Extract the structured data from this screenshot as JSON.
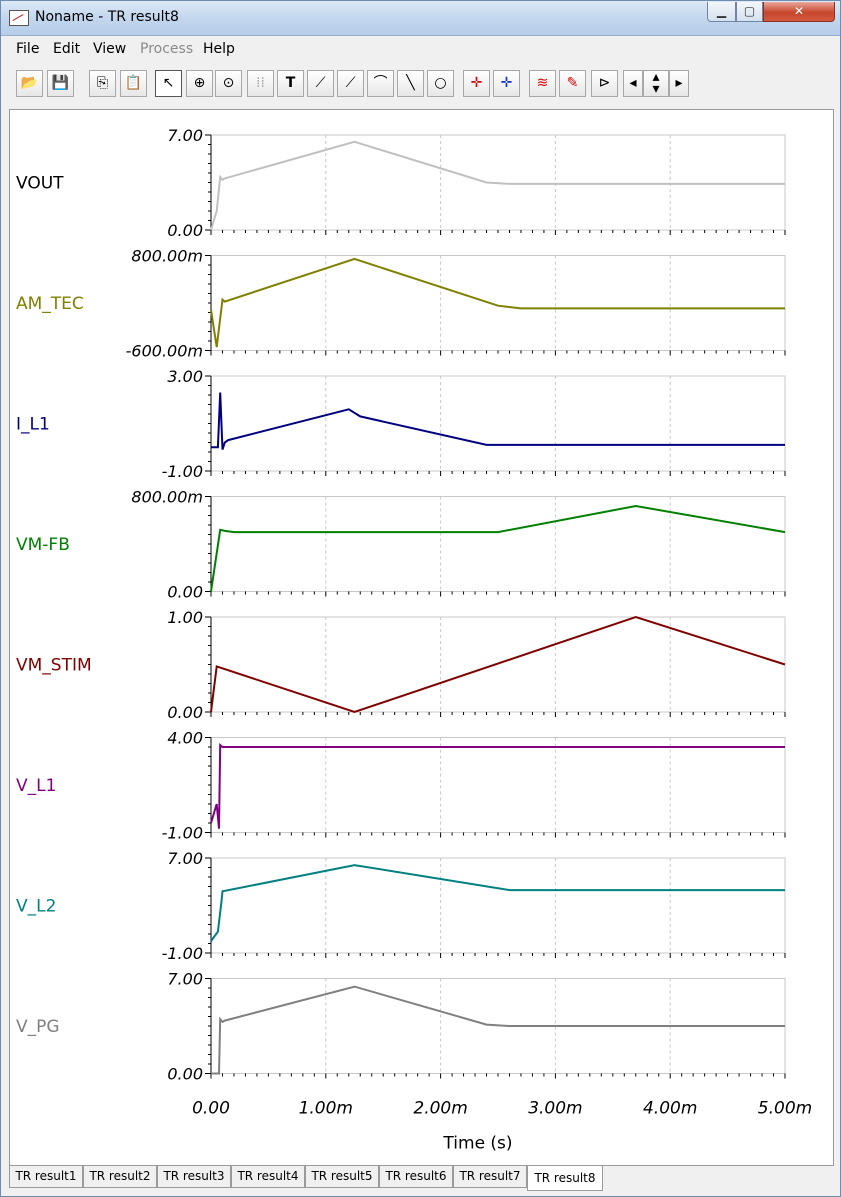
{
  "window": {
    "title": "Noname - TR result8",
    "min_label": "▁",
    "max_label": "▢",
    "close_label": "✕"
  },
  "menu": [
    {
      "label": "File",
      "enabled": true
    },
    {
      "label": "Edit",
      "enabled": true
    },
    {
      "label": "View",
      "enabled": true
    },
    {
      "label": "Process",
      "enabled": false
    },
    {
      "label": "Help",
      "enabled": true
    }
  ],
  "toolbar": {
    "icons": [
      "open-folder-icon",
      "save-disk-icon",
      "copy-icon",
      "paste-icon",
      "pointer-icon",
      "zoom-in-icon",
      "zoom-100-icon",
      "grid-icon",
      "text-icon",
      "cursor-a-icon",
      "cursor-b-icon",
      "curve-tool-icon",
      "line-tool-icon",
      "circle-tool-icon",
      "cursor-a-red-icon",
      "cursor-b-blue-icon",
      "add-trace-icon",
      "probe-icon",
      "flag-icon",
      "scroll-left-icon",
      "scroll-updown-icon",
      "scroll-right-icon"
    ]
  },
  "chart_data": {
    "type": "line",
    "xlabel": "Time (s)",
    "x_ticks": [
      "0.00",
      "1.00m",
      "2.00m",
      "3.00m",
      "4.00m",
      "5.00m"
    ],
    "xlim": [
      0,
      0.005
    ],
    "series": [
      {
        "name": "VOUT",
        "color": "#c0c0c0",
        "ymax_label": "7.00",
        "ymin_label": "0.00",
        "ylim": [
          0,
          7
        ],
        "x": [
          0,
          5e-05,
          8e-05,
          0.0001,
          0.00012,
          0.00125,
          0.0024,
          0.0026,
          0.005
        ],
        "y": [
          0,
          1.4,
          3.9,
          3.7,
          3.8,
          6.5,
          3.5,
          3.4,
          3.4
        ]
      },
      {
        "name": "AM_TEC",
        "color": "#808000",
        "ymax_label": "800.00m",
        "ymin_label": "-600.00m",
        "ylim": [
          -0.6,
          0.8
        ],
        "x": [
          0,
          5e-05,
          0.0001,
          0.00012,
          0.00125,
          0.0025,
          0.0027,
          0.005
        ],
        "y": [
          0,
          -0.55,
          0.15,
          0.12,
          0.75,
          0.06,
          0.02,
          0.02
        ]
      },
      {
        "name": "I_L1",
        "color": "#000080",
        "ymax_label": "3.00",
        "ymin_label": "-1.00",
        "ylim": [
          -1,
          3
        ],
        "x": [
          0,
          6e-05,
          8e-05,
          0.0001,
          0.00012,
          0.00015,
          0.0012,
          0.0013,
          0.0024,
          0.0026,
          0.005
        ],
        "y": [
          0,
          0,
          2.3,
          -0.1,
          0.2,
          0.3,
          1.6,
          1.3,
          0.1,
          0.1,
          0.1
        ]
      },
      {
        "name": "VM-FB",
        "color": "#008000",
        "ymax_label": "800.00m",
        "ymin_label": "0.00",
        "ylim": [
          0,
          0.8
        ],
        "x": [
          0,
          8e-05,
          0.00012,
          0.0002,
          0.0025,
          0.0037,
          0.005
        ],
        "y": [
          0,
          0.52,
          0.51,
          0.5,
          0.5,
          0.72,
          0.5
        ]
      },
      {
        "name": "VM_STIM",
        "color": "#800000",
        "ymax_label": "1.00",
        "ymin_label": "0.00",
        "ylim": [
          0,
          1
        ],
        "x": [
          0,
          5e-05,
          0.00125,
          0.0037,
          0.005
        ],
        "y": [
          0,
          0.48,
          0.0,
          1.0,
          0.5
        ]
      },
      {
        "name": "V_L1",
        "color": "#800080",
        "ymax_label": "4.00",
        "ymin_label": "-1.00",
        "ylim": [
          -1,
          4
        ],
        "x": [
          0,
          5e-05,
          7e-05,
          8e-05,
          0.0001,
          0.0026,
          0.005
        ],
        "y": [
          -0.5,
          0.5,
          -0.8,
          3.6,
          3.5,
          3.5,
          3.5
        ]
      },
      {
        "name": "V_L2",
        "color": "#008080",
        "ymax_label": "7.00",
        "ymin_label": "-1.00",
        "ylim": [
          -1,
          7
        ],
        "x": [
          0,
          6e-05,
          9e-05,
          0.0001,
          0.00125,
          0.0026,
          0.0027,
          0.005
        ],
        "y": [
          0,
          0.8,
          3.2,
          4.2,
          6.4,
          4.3,
          4.3,
          4.3
        ]
      },
      {
        "name": "V_PG",
        "color": "#808080",
        "ymax_label": "7.00",
        "ymin_label": "0.00",
        "ylim": [
          0,
          7
        ],
        "x": [
          0,
          7e-05,
          8e-05,
          0.0001,
          0.00012,
          0.00125,
          0.0024,
          0.0026,
          0.005
        ],
        "y": [
          0,
          0,
          4.0,
          3.8,
          3.9,
          6.4,
          3.6,
          3.5,
          3.5
        ]
      }
    ]
  },
  "tabs": [
    {
      "label": "TR result1",
      "active": false
    },
    {
      "label": "TR result2",
      "active": false
    },
    {
      "label": "TR result3",
      "active": false
    },
    {
      "label": "TR result4",
      "active": false
    },
    {
      "label": "TR result5",
      "active": false
    },
    {
      "label": "TR result6",
      "active": false
    },
    {
      "label": "TR result7",
      "active": false
    },
    {
      "label": "TR result8",
      "active": true
    }
  ]
}
